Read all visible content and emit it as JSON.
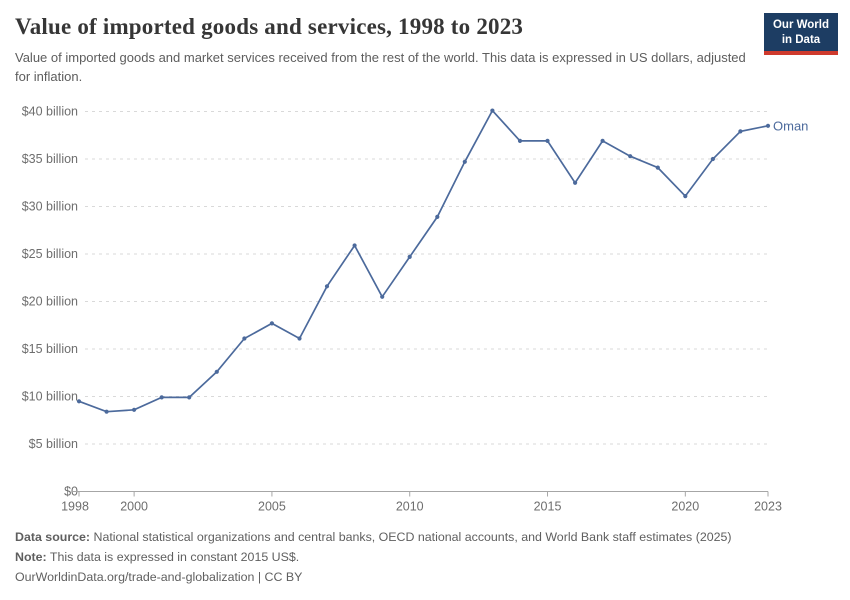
{
  "header": {
    "title": "Value of imported goods and services, 1998 to 2023",
    "subtitle": "Value of imported goods and market services received from the rest of the world. This data is expressed in US dollars, adjusted for inflation.",
    "logo": {
      "line1": "Our World",
      "line2": "in Data",
      "bg_color": "#1d3d63",
      "bar_color": "#cf3a2d"
    }
  },
  "chart_data": {
    "type": "line",
    "title": "Value of imported goods and services, 1998 to 2023",
    "xlabel": "",
    "ylabel": "",
    "x": [
      1998,
      1999,
      2000,
      2001,
      2002,
      2003,
      2004,
      2005,
      2006,
      2007,
      2008,
      2009,
      2010,
      2011,
      2012,
      2013,
      2014,
      2015,
      2016,
      2017,
      2018,
      2019,
      2020,
      2021,
      2022,
      2023
    ],
    "series": [
      {
        "name": "Oman",
        "color": "#4c6a9c",
        "values": [
          9.5,
          8.4,
          8.6,
          9.9,
          9.9,
          12.6,
          16.1,
          17.7,
          16.1,
          21.6,
          25.9,
          20.5,
          24.7,
          28.9,
          34.7,
          40.1,
          36.9,
          36.9,
          32.5,
          36.9,
          35.3,
          34.1,
          31.1,
          35.0,
          37.9,
          38.5
        ]
      }
    ],
    "ylim": [
      0,
      40
    ],
    "ytick_step": 5,
    "ytick_unit_suffix": " billion",
    "ytick_prefix": "$",
    "ytick_zero_label": "$0",
    "xticks": [
      1998,
      2000,
      2005,
      2010,
      2015,
      2020,
      2023
    ],
    "grid": "horizontal-dashed",
    "legend_position": "end-of-line"
  },
  "footer": {
    "data_source_label": "Data source:",
    "data_source_text": "National statistical organizations and central banks, OECD national accounts, and World Bank staff estimates (2025)",
    "note_label": "Note:",
    "note_text": "This data is expressed in constant 2015 US$.",
    "url_line": "OurWorldinData.org/trade-and-globalization | CC BY"
  }
}
